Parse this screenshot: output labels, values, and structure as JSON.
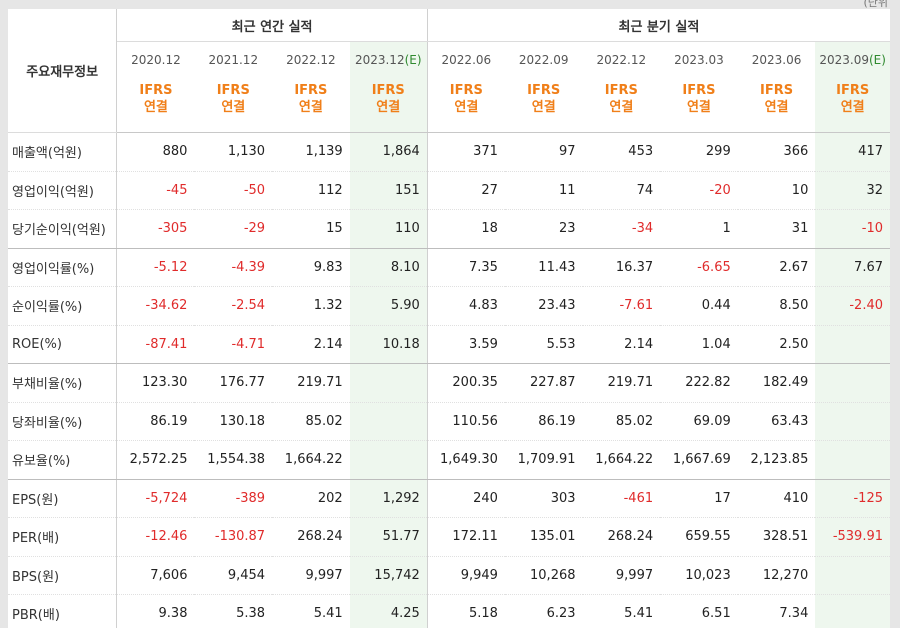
{
  "corner_note": "(단위",
  "header": {
    "corner_label": "주요재무정보",
    "annual_title": "최근 연간 실적",
    "quarter_title": "최근 분기 실적",
    "columns": [
      "2020.12",
      "2021.12",
      "2022.12",
      "2023.12",
      "2022.06",
      "2022.09",
      "2022.12",
      "2023.03",
      "2023.06",
      "2023.09"
    ],
    "estimate_mark": "(E)",
    "ifrs_top": "IFRS",
    "ifrs_bottom": "연결"
  },
  "rows": [
    {
      "label": "매출액(억원)",
      "values": [
        "880",
        "1,130",
        "1,139",
        "1,864",
        "371",
        "97",
        "453",
        "299",
        "366",
        "417"
      ]
    },
    {
      "label": "영업이익(억원)",
      "values": [
        "-45",
        "-50",
        "112",
        "151",
        "27",
        "11",
        "74",
        "-20",
        "10",
        "32"
      ]
    },
    {
      "label": "당기순이익(억원)",
      "values": [
        "-305",
        "-29",
        "15",
        "110",
        "18",
        "23",
        "-34",
        "1",
        "31",
        "-10"
      ]
    },
    {
      "label": "영업이익률(%)",
      "values": [
        "-5.12",
        "-4.39",
        "9.83",
        "8.10",
        "7.35",
        "11.43",
        "16.37",
        "-6.65",
        "2.67",
        "7.67"
      ]
    },
    {
      "label": "순이익률(%)",
      "values": [
        "-34.62",
        "-2.54",
        "1.32",
        "5.90",
        "4.83",
        "23.43",
        "-7.61",
        "0.44",
        "8.50",
        "-2.40"
      ]
    },
    {
      "label": "ROE(%)",
      "values": [
        "-87.41",
        "-4.71",
        "2.14",
        "10.18",
        "3.59",
        "5.53",
        "2.14",
        "1.04",
        "2.50",
        ""
      ]
    },
    {
      "label": "부채비율(%)",
      "values": [
        "123.30",
        "176.77",
        "219.71",
        "",
        "200.35",
        "227.87",
        "219.71",
        "222.82",
        "182.49",
        ""
      ]
    },
    {
      "label": "당좌비율(%)",
      "values": [
        "86.19",
        "130.18",
        "85.02",
        "",
        "110.56",
        "86.19",
        "85.02",
        "69.09",
        "63.43",
        ""
      ]
    },
    {
      "label": "유보율(%)",
      "values": [
        "2,572.25",
        "1,554.38",
        "1,664.22",
        "",
        "1,649.30",
        "1,709.91",
        "1,664.22",
        "1,667.69",
        "2,123.85",
        ""
      ]
    },
    {
      "label": "EPS(원)",
      "values": [
        "-5,724",
        "-389",
        "202",
        "1,292",
        "240",
        "303",
        "-461",
        "17",
        "410",
        "-125"
      ]
    },
    {
      "label": "PER(배)",
      "values": [
        "-12.46",
        "-130.87",
        "268.24",
        "51.77",
        "172.11",
        "135.01",
        "268.24",
        "659.55",
        "328.51",
        "-539.91"
      ]
    },
    {
      "label": "BPS(원)",
      "values": [
        "7,606",
        "9,454",
        "9,997",
        "15,742",
        "9,949",
        "10,268",
        "9,997",
        "10,023",
        "12,270",
        ""
      ]
    },
    {
      "label": "PBR(배)",
      "values": [
        "9.38",
        "5.38",
        "5.41",
        "4.25",
        "5.18",
        "6.23",
        "5.41",
        "6.51",
        "7.34",
        ""
      ]
    }
  ],
  "colors": {
    "negative": "#e02b2b",
    "ifrs": "#f07f19",
    "estimate_bg": "#eef7ee",
    "estimate_mark": "#2f8a2f"
  }
}
